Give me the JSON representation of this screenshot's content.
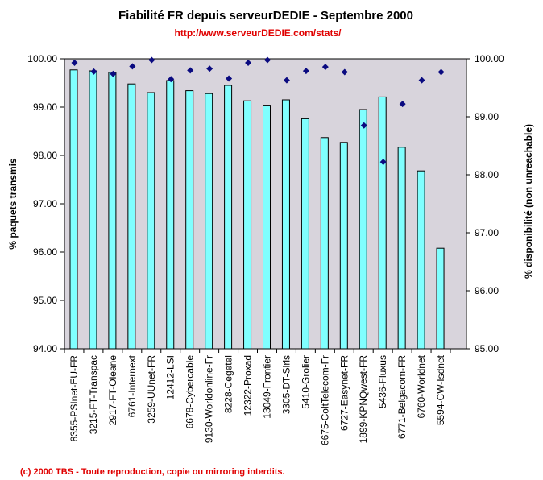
{
  "page": {
    "url": "http://www.serveurDEDIE.com/stats/",
    "footer": "(c) 2000 TBS - Toute reproduction, copie ou mirroring interdits."
  },
  "colors": {
    "plot_bg": "#d8d4dc",
    "bar_fill": "#80ffff",
    "bar_stroke": "#000000",
    "marker": "#0a0a80",
    "url": "#e00000"
  },
  "chart_data": {
    "type": "bar",
    "title": "Fiabilité FR depuis serveurDEDIE - Septembre 2000",
    "ylabel": "% paquets transmis",
    "y2label": "% disponibilité (non unreachable)",
    "ylim": [
      94,
      100
    ],
    "y2lim": [
      95,
      100
    ],
    "yticks": [
      "94.00",
      "95.00",
      "96.00",
      "97.00",
      "98.00",
      "99.00",
      "100.00"
    ],
    "y2ticks": [
      "95.00",
      "96.00",
      "97.00",
      "98.00",
      "99.00",
      "100.00"
    ],
    "legend": "none",
    "grid": false,
    "categories": [
      "8355-PSInet-EU-FR",
      "3215-FT-Transpac",
      "2917-FT-Oleane",
      "6761-Internext",
      "3259-UUnet-FR",
      "12412-LSI",
      "6678-Cybercable",
      "9130-Worldonline-Fr",
      "8228-Cegetel",
      "12322-Proxad",
      "13049-Frontier",
      "3305-DT-Siris",
      "5410-Grolier",
      "6675-ColtTelecom-Fr",
      "6727-Easynet-FR",
      "1899-KPNQwest-FR",
      "5436-Fluxus",
      "6771-Belgacom-FR",
      "6760-Worldnet",
      "5594-CW-Isdnet"
    ],
    "series": [
      {
        "name": "% paquets transmis",
        "type": "bar",
        "axis": "left",
        "values": [
          99.77,
          99.75,
          99.72,
          99.48,
          99.3,
          99.55,
          99.34,
          99.28,
          99.45,
          99.13,
          99.04,
          99.15,
          98.76,
          98.37,
          98.27,
          98.95,
          99.21,
          98.17,
          97.68,
          96.08
        ]
      },
      {
        "name": "% disponibilité (non unreachable)",
        "type": "scatter",
        "axis": "right",
        "values": [
          99.93,
          99.78,
          99.74,
          99.87,
          99.98,
          99.65,
          99.8,
          99.83,
          99.66,
          99.93,
          99.98,
          99.63,
          99.79,
          99.86,
          99.77,
          98.85,
          98.22,
          99.22,
          99.63,
          99.77
        ]
      }
    ]
  }
}
